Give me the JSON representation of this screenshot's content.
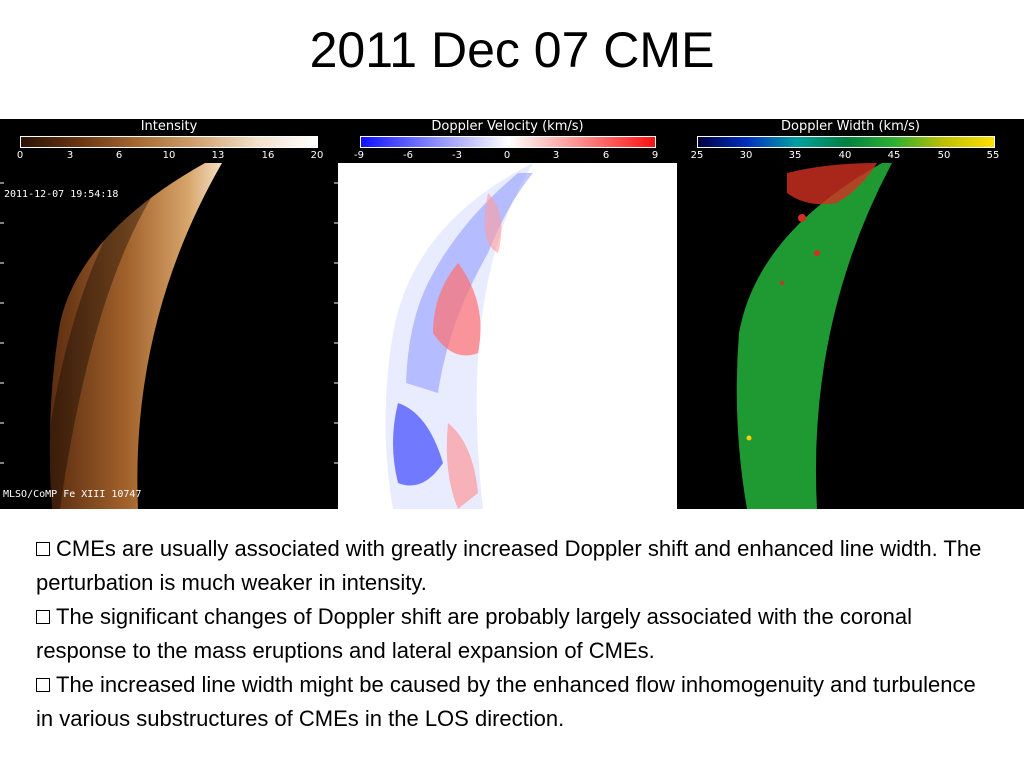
{
  "slide": {
    "title": "2011 Dec 07 CME"
  },
  "figure": {
    "panels": [
      {
        "label": "Intensity",
        "ticks": [
          "0",
          "3",
          "6",
          "10",
          "13",
          "16",
          "20"
        ],
        "timestamp": "2011-12-07 19:54:18",
        "instrument": "MLSO/CoMP Fe XIII 10747"
      },
      {
        "label": "Doppler Velocity (km/s)",
        "ticks": [
          "-9",
          "-6",
          "-3",
          "0",
          "3",
          "6",
          "9"
        ]
      },
      {
        "label": "Doppler Width (km/s)",
        "ticks": [
          "25",
          "30",
          "35",
          "40",
          "45",
          "50",
          "55"
        ]
      }
    ],
    "colors": {
      "intensity": [
        "#3a1a08",
        "#8a4a1c",
        "#c98b4a",
        "#f0dcc0",
        "#ffffff"
      ],
      "velocity": [
        "#1a1aff",
        "#ffffff",
        "#ff1a1a"
      ],
      "width": [
        "#00003a",
        "#0040ff",
        "#00a040",
        "#30c030",
        "#ff2020",
        "#ffff00"
      ]
    }
  },
  "bullets": [
    "CMEs are usually associated with greatly increased Doppler shift and enhanced line width. The perturbation is much weaker in intensity.",
    "The significant changes of Doppler shift are probably largely associated with the coronal response to the mass eruptions and lateral expansion of CMEs.",
    "The increased line width might be caused by the enhanced flow inhomogenuity and turbulence in various substructures of CMEs in the LOS direction."
  ]
}
